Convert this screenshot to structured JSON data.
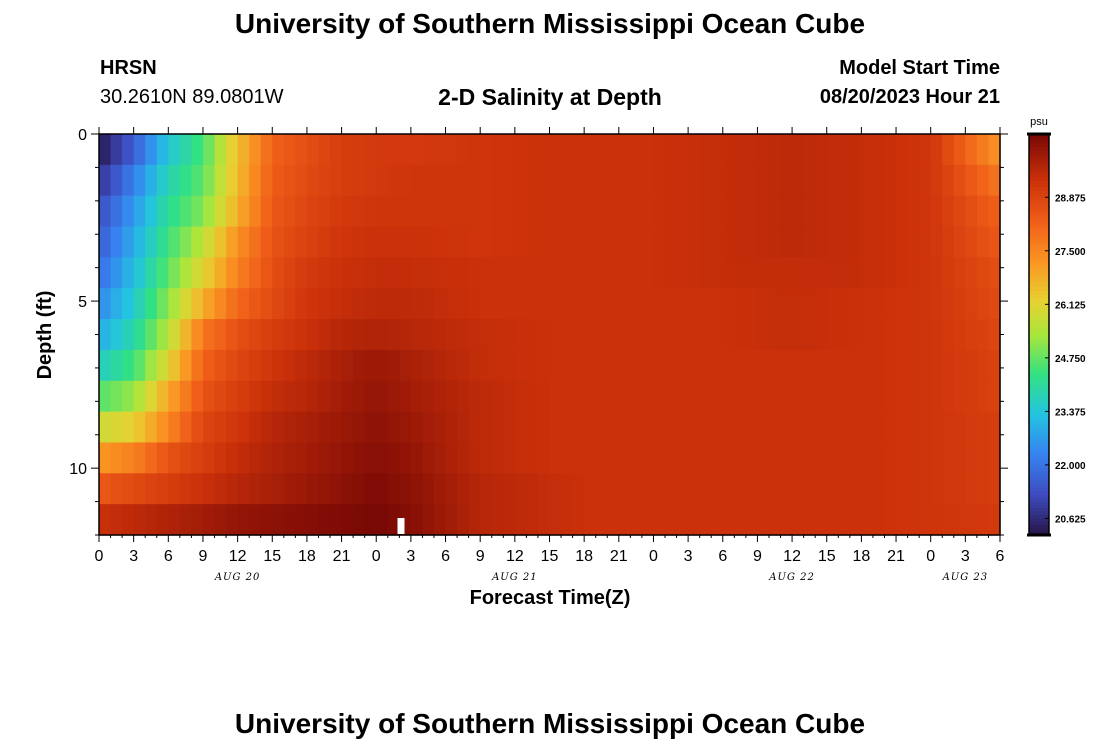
{
  "header": {
    "title_top": "University of Southern Mississippi Ocean Cube",
    "title_bottom": "University of Southern Mississippi Ocean Cube",
    "station": "HRSN",
    "coords": "30.2610N  89.0801W",
    "plot_title": "2-D Salinity at Depth",
    "start_label": "Model Start Time",
    "start_value": "08/20/2023 Hour 21"
  },
  "chart_data": {
    "type": "heatmap",
    "title": "2-D Salinity at Depth",
    "xlabel": "Forecast Time(Z)",
    "ylabel": "Depth (ft)",
    "ylim": [
      12,
      0
    ],
    "yticks": [
      0,
      5,
      10
    ],
    "xtick_labels": [
      "0",
      "3",
      "6",
      "9",
      "12",
      "15",
      "18",
      "21",
      "0",
      "3",
      "6",
      "9",
      "12",
      "15",
      "18",
      "21",
      "0",
      "3",
      "6",
      "9",
      "12",
      "15",
      "18",
      "21",
      "0",
      "3",
      "6"
    ],
    "date_labels": [
      {
        "label": "AUG 20",
        "tick_index": 4
      },
      {
        "label": "AUG 21",
        "tick_index": 12
      },
      {
        "label": "AUG 22",
        "tick_index": 20
      },
      {
        "label": "AUG 23",
        "tick_index": 25
      }
    ],
    "now_marker_tick": 8.7,
    "colorbar": {
      "unit": "psu",
      "min": 20.2,
      "max": 30.5,
      "ticks": [
        28.875,
        27.5,
        26.125,
        24.75,
        23.375,
        22.0,
        20.625
      ],
      "tick_labels": [
        "28.875",
        "27.500",
        "26.125",
        "24.750",
        "23.375",
        "22.000",
        "20.625"
      ]
    },
    "time_keys": [
      0,
      1,
      2,
      3,
      4,
      5,
      6,
      7,
      8,
      9,
      11,
      13,
      14,
      16,
      18,
      20,
      22,
      24,
      26
    ],
    "depth_rows": [
      [
        20.3,
        21.6,
        23.4,
        24.5,
        26.5,
        28.2,
        28.6,
        29.0,
        29.1,
        29.1,
        29.2,
        29.3,
        29.3,
        29.3,
        29.4,
        29.5,
        29.4,
        29.2,
        27.2
      ],
      [
        20.8,
        22.2,
        23.8,
        24.7,
        26.6,
        28.3,
        28.7,
        29.0,
        29.1,
        29.2,
        29.2,
        29.3,
        29.3,
        29.3,
        29.4,
        29.5,
        29.4,
        29.2,
        27.8
      ],
      [
        21.3,
        22.6,
        24.1,
        25.0,
        26.8,
        28.4,
        28.8,
        29.1,
        29.2,
        29.2,
        29.2,
        29.3,
        29.3,
        29.3,
        29.4,
        29.5,
        29.4,
        29.2,
        28.2
      ],
      [
        21.6,
        22.9,
        24.4,
        25.6,
        27.3,
        28.5,
        28.9,
        29.2,
        29.3,
        29.3,
        29.2,
        29.3,
        29.3,
        29.3,
        29.4,
        29.5,
        29.4,
        29.2,
        28.4
      ],
      [
        21.9,
        23.2,
        24.7,
        26.1,
        27.6,
        28.6,
        29.1,
        29.3,
        29.4,
        29.4,
        29.3,
        29.3,
        29.3,
        29.3,
        29.4,
        29.4,
        29.4,
        29.2,
        28.6
      ],
      [
        22.4,
        23.5,
        25.1,
        26.8,
        28.1,
        28.7,
        29.2,
        29.4,
        29.5,
        29.5,
        29.3,
        29.3,
        29.3,
        29.3,
        29.3,
        29.4,
        29.3,
        29.2,
        28.7
      ],
      [
        22.9,
        23.9,
        25.5,
        27.8,
        28.6,
        29.0,
        29.3,
        29.6,
        29.7,
        29.6,
        29.4,
        29.3,
        29.3,
        29.3,
        29.3,
        29.4,
        29.3,
        29.2,
        28.8
      ],
      [
        23.6,
        24.4,
        26.1,
        28.2,
        28.8,
        29.2,
        29.5,
        29.8,
        30.0,
        29.8,
        29.4,
        29.3,
        29.3,
        29.3,
        29.3,
        29.3,
        29.3,
        29.2,
        28.9
      ],
      [
        24.6,
        25.2,
        26.9,
        28.5,
        29.0,
        29.4,
        29.6,
        29.9,
        30.1,
        29.9,
        29.5,
        29.3,
        29.3,
        29.3,
        29.3,
        29.3,
        29.3,
        29.2,
        28.9
      ],
      [
        25.8,
        26.2,
        27.5,
        28.8,
        29.2,
        29.6,
        29.8,
        30.0,
        30.2,
        30.0,
        29.5,
        29.3,
        29.3,
        29.3,
        29.3,
        29.3,
        29.3,
        29.2,
        29.0
      ],
      [
        27.2,
        27.6,
        28.5,
        29.0,
        29.4,
        29.7,
        29.9,
        30.1,
        30.3,
        30.1,
        29.5,
        29.3,
        29.3,
        29.3,
        29.3,
        29.3,
        29.3,
        29.2,
        29.0
      ],
      [
        28.4,
        28.7,
        29.0,
        29.3,
        29.6,
        29.8,
        30.0,
        30.2,
        30.4,
        30.2,
        29.6,
        29.4,
        29.3,
        29.3,
        29.3,
        29.3,
        29.3,
        29.2,
        29.0
      ],
      [
        29.3,
        29.5,
        29.7,
        29.9,
        30.1,
        30.2,
        30.3,
        30.4,
        30.5,
        30.3,
        29.6,
        29.4,
        29.3,
        29.3,
        29.3,
        29.3,
        29.3,
        29.2,
        29.1
      ]
    ]
  }
}
